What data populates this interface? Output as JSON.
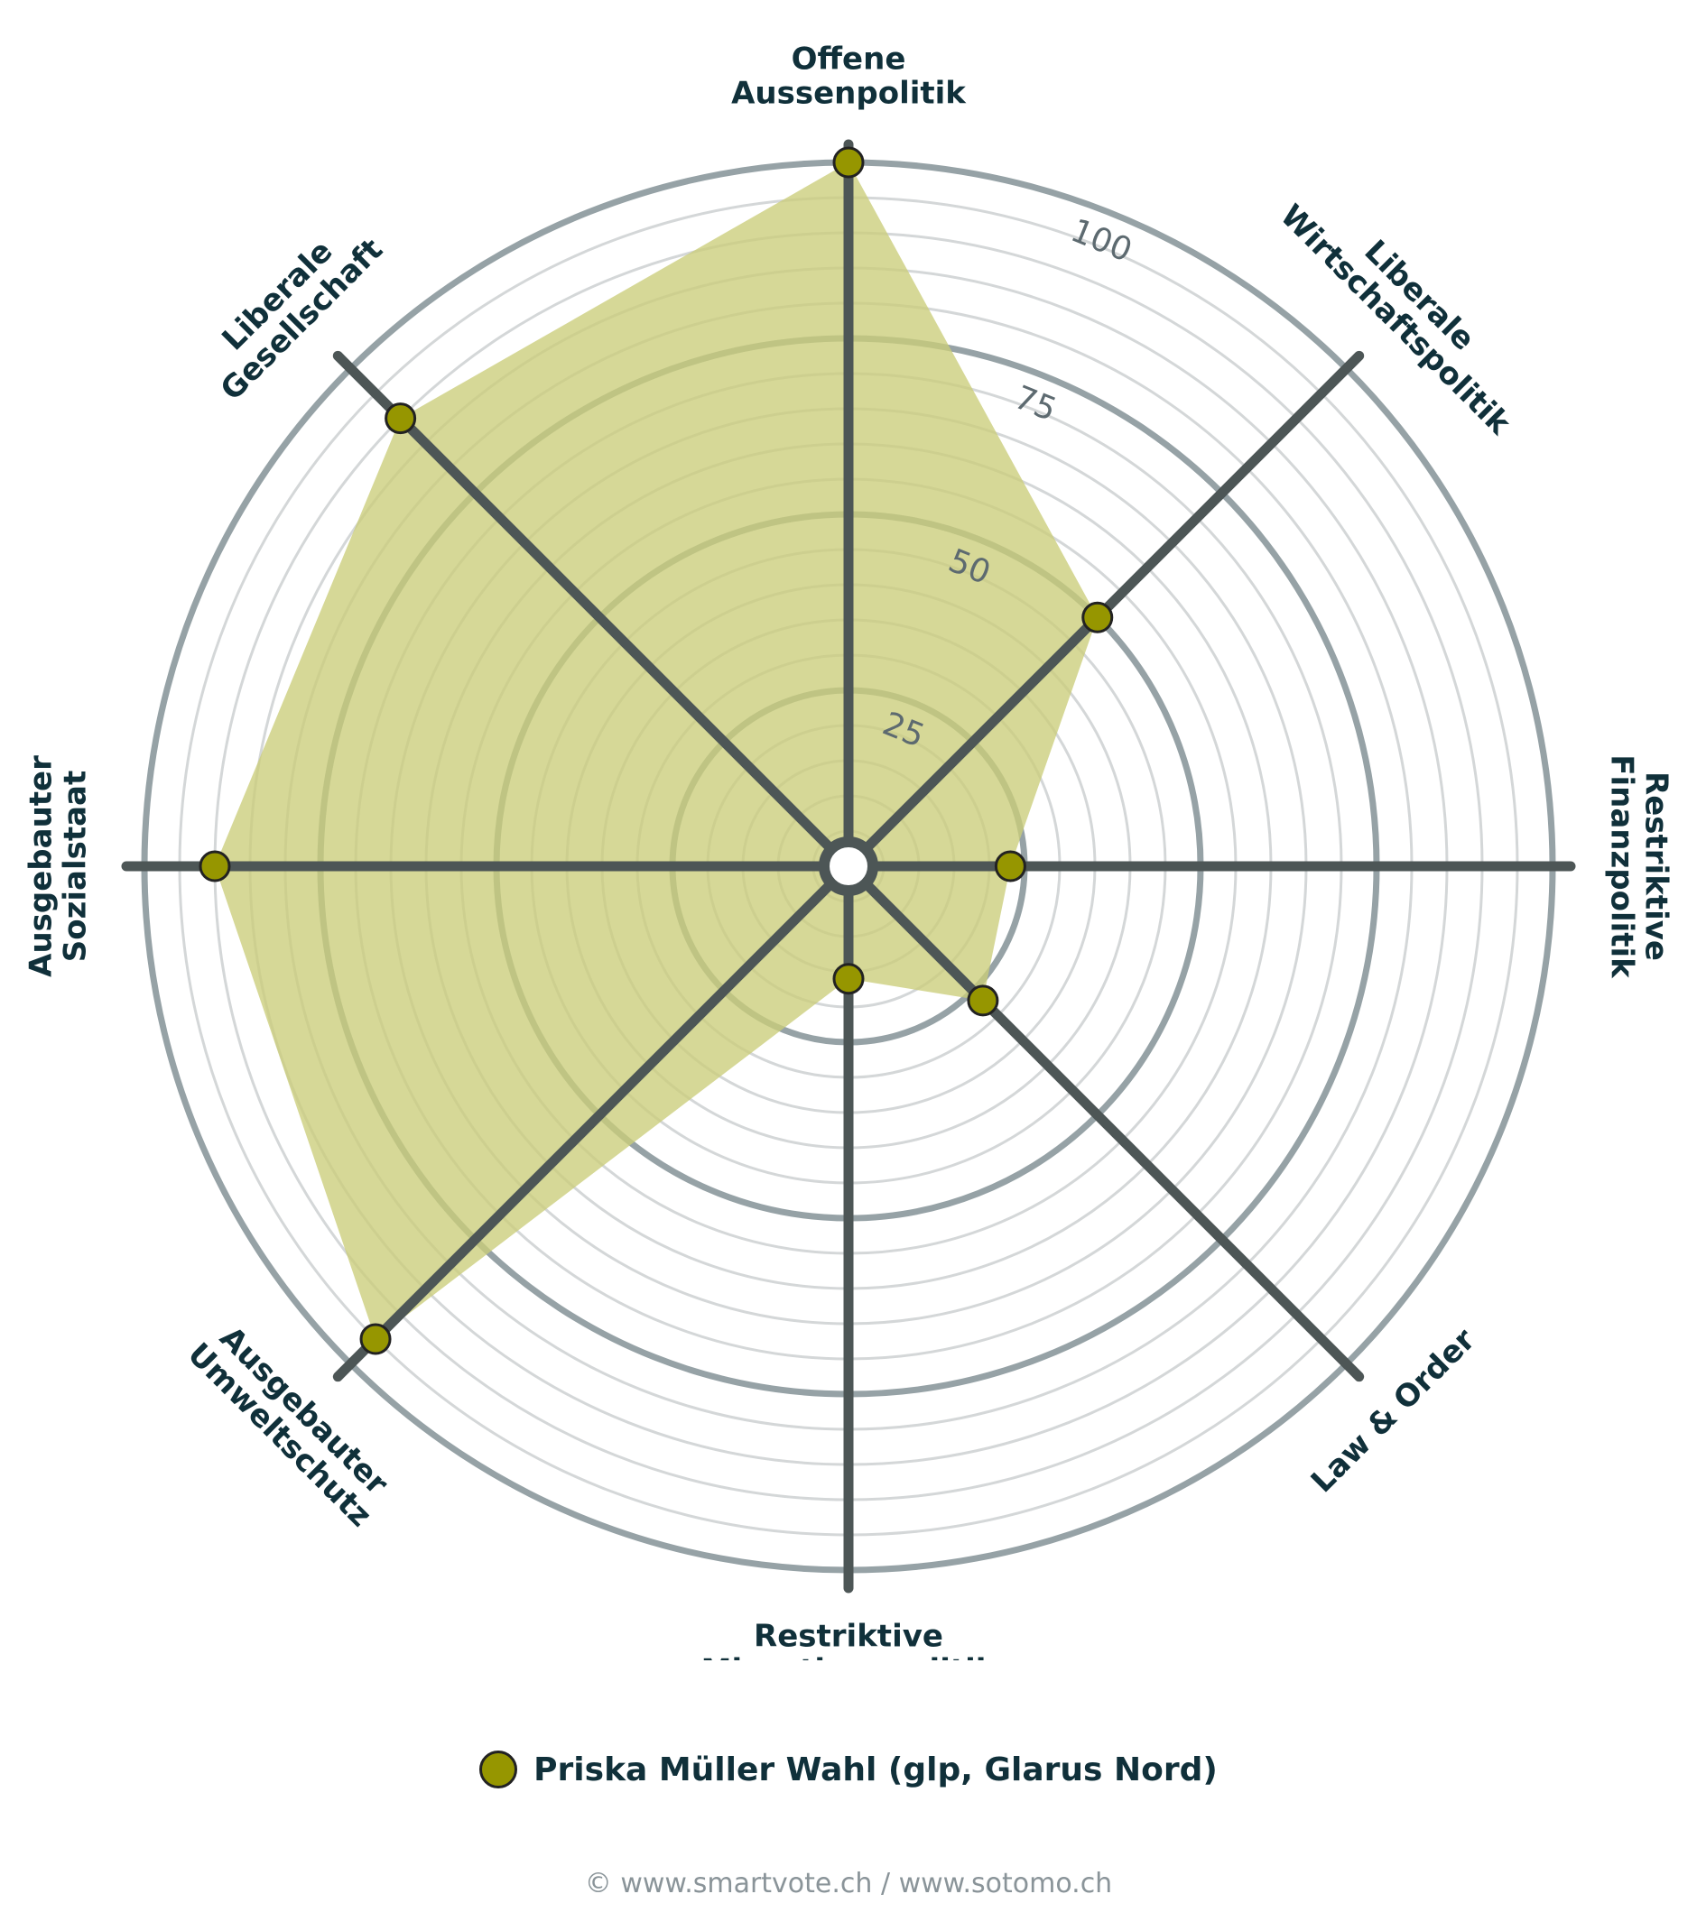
{
  "chart_data": {
    "type": "radar",
    "axes": [
      [
        "Offene",
        "Aussenpolitik"
      ],
      [
        "Liberale",
        "Wirtschaftspolitik"
      ],
      [
        "Restriktive",
        "Finanzpolitik"
      ],
      [
        "Law & Order"
      ],
      [
        "Restriktive",
        "Migrationspolitik"
      ],
      [
        "Ausgebauter",
        "Umweltschutz"
      ],
      [
        "Ausgebauter",
        "Sozialstaat"
      ],
      [
        "Liberale",
        "Gesellschaft"
      ]
    ],
    "ring_ticks": [
      "25",
      "50",
      "75",
      "100"
    ],
    "rlim": [
      0,
      100
    ],
    "series": [
      {
        "name": "Priska Müller Wahl (glp, Glarus Nord)",
        "values": [
          100,
          50,
          23,
          27,
          16,
          95,
          90,
          90
        ],
        "color": "#969600",
        "fill": "#cacd7a"
      }
    ]
  },
  "footer": "© www.smartvote.ch / www.sotomo.ch"
}
